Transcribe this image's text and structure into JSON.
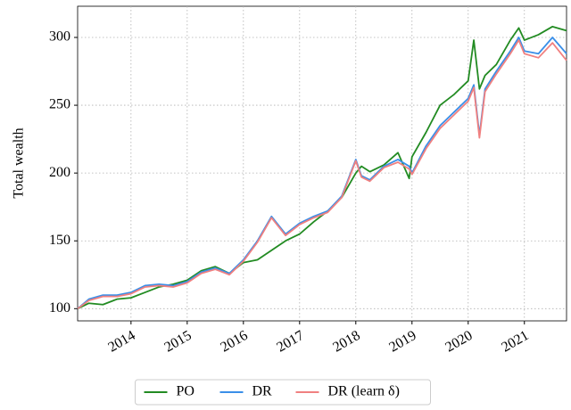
{
  "chart_data": {
    "type": "line",
    "y_label": "Total wealth",
    "x": [
      2013.05,
      2013.25,
      2013.5,
      2013.75,
      2014.0,
      2014.25,
      2014.5,
      2014.75,
      2015.0,
      2015.25,
      2015.5,
      2015.75,
      2016.0,
      2016.25,
      2016.5,
      2016.75,
      2017.0,
      2017.25,
      2017.5,
      2017.75,
      2018.0,
      2018.1,
      2018.25,
      2018.5,
      2018.75,
      2018.95,
      2019.0,
      2019.25,
      2019.5,
      2019.75,
      2020.0,
      2020.1,
      2020.2,
      2020.3,
      2020.5,
      2020.75,
      2020.9,
      2021.0,
      2021.25,
      2021.5,
      2021.75
    ],
    "series": [
      {
        "name": "PO",
        "color": "#228b22",
        "values": [
          100,
          104,
          103,
          107,
          108,
          112,
          116,
          118,
          121,
          128,
          131,
          126,
          134,
          136,
          143,
          150,
          155,
          164,
          172,
          182,
          200,
          205,
          201,
          206,
          215,
          196,
          212,
          230,
          250,
          258,
          268,
          298,
          262,
          272,
          280,
          298,
          307,
          298,
          302,
          308,
          305
        ]
      },
      {
        "name": "DR",
        "color": "#3a8fe8",
        "values": [
          100,
          107,
          110,
          110,
          112,
          117,
          118,
          117,
          120,
          127,
          130,
          126,
          136,
          150,
          168,
          155,
          163,
          168,
          172,
          183,
          210,
          198,
          195,
          205,
          210,
          205,
          200,
          220,
          235,
          245,
          255,
          265,
          228,
          262,
          275,
          290,
          300,
          290,
          288,
          300,
          288
        ]
      },
      {
        "name": "DR (learn δ)",
        "color": "#f08080",
        "values": [
          100,
          106,
          109,
          109,
          111,
          116,
          117,
          116,
          119,
          126,
          129,
          125,
          135,
          149,
          167,
          154,
          162,
          167,
          171,
          182,
          209,
          197,
          194,
          204,
          208,
          203,
          199,
          218,
          233,
          243,
          253,
          263,
          226,
          260,
          273,
          288,
          298,
          288,
          285,
          296,
          283
        ]
      }
    ],
    "xlim": [
      2013.05,
      2021.75
    ],
    "xticks": [
      2014,
      2015,
      2016,
      2017,
      2018,
      2019,
      2020,
      2021
    ],
    "ylim": [
      91,
      323
    ],
    "yticks": [
      100,
      150,
      200,
      250,
      300
    ],
    "grid": true,
    "legend": "below"
  }
}
